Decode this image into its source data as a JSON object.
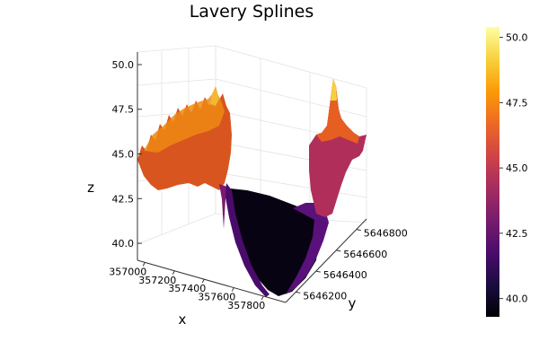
{
  "chart_data": {
    "type": "surface",
    "title": "Lavery Splines",
    "xlabel": "x",
    "ylabel": "y",
    "zlabel": "z",
    "x_ticks": [
      "357000",
      "357200",
      "357400",
      "357600",
      "357800"
    ],
    "y_ticks": [
      "5646200",
      "5646400",
      "5646600",
      "5646800"
    ],
    "z_ticks": [
      "40.0",
      "42.5",
      "45.0",
      "47.5",
      "50.0"
    ],
    "colorbar_ticks": [
      "40.0",
      "42.5",
      "45.0",
      "47.5",
      "50.0"
    ],
    "colormap": "inferno",
    "colormap_stops": [
      "#000004",
      "#1b0c41",
      "#4a0c6b",
      "#781c6d",
      "#a52c60",
      "#cf4446",
      "#ed6925",
      "#fb9b06",
      "#f7d13d",
      "#fcffa4"
    ],
    "xlim": [
      356950,
      357950
    ],
    "ylim": [
      5646100,
      5646900
    ],
    "zlim": [
      39.3,
      50.4
    ],
    "grid": true
  }
}
